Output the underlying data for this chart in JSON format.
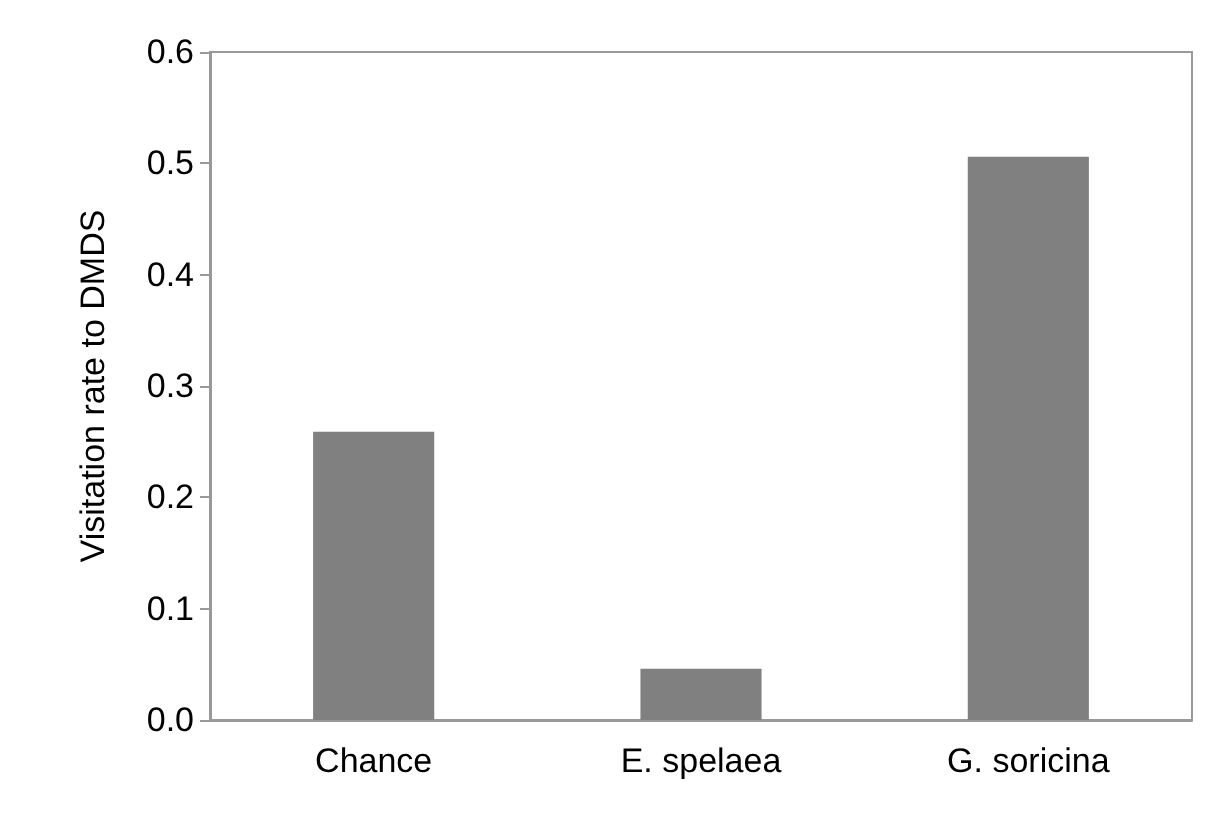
{
  "chart_data": {
    "type": "bar",
    "ylabel": "Visitation rate to DMDS",
    "categories": [
      "Chance",
      "E. spelaea",
      "G. soricina"
    ],
    "values": [
      0.259,
      0.046,
      0.506
    ],
    "color": "#808080",
    "ylim": [
      0,
      0.6
    ],
    "yticks": [
      {
        "value": 0,
        "label": "0.0"
      },
      {
        "value": 0.1,
        "label": "0.1"
      },
      {
        "value": 0.2,
        "label": "0.2"
      },
      {
        "value": 0.3,
        "label": "0.3"
      },
      {
        "value": 0.4,
        "label": "0.4"
      },
      {
        "value": 0.5,
        "label": "0.5"
      },
      {
        "value": 0.6,
        "label": "0.6"
      }
    ],
    "grid": false
  }
}
